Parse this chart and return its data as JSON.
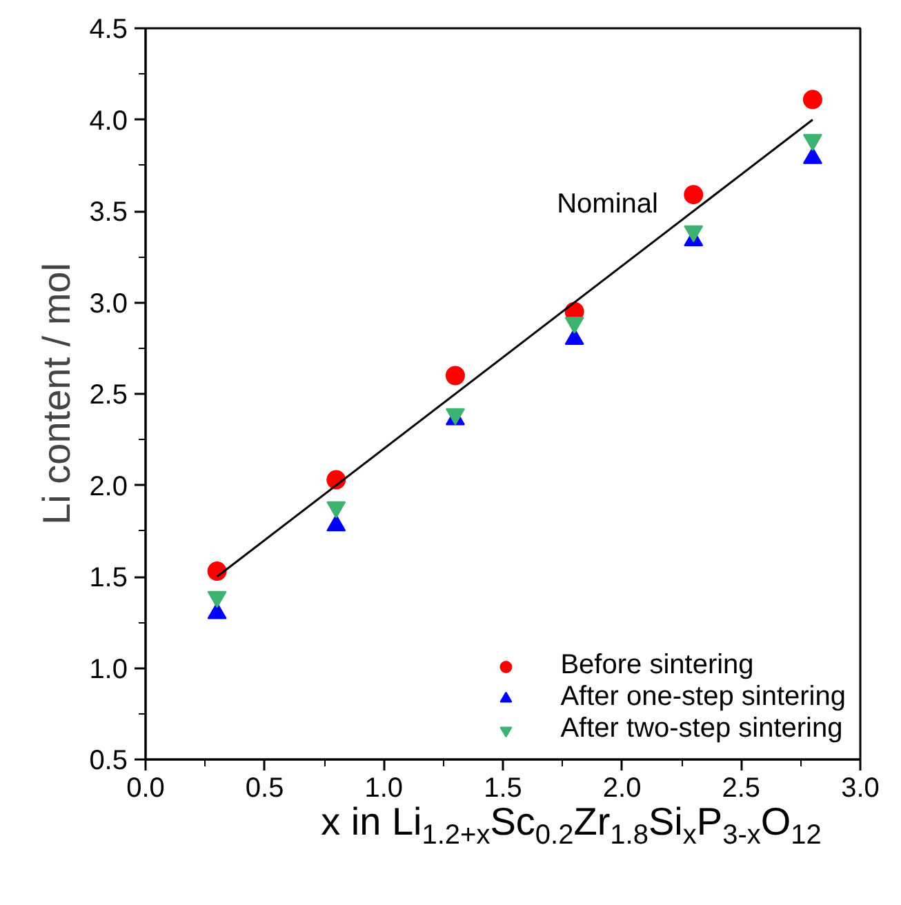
{
  "chart_data": {
    "type": "scatter",
    "xlabel": "x in Li$_{1.2+x}$Sc$_{0.2}$Zr$_{1.8}$Si$_{x}$P$_{3-x}$O$_{12}$",
    "ylabel": "Li content / mol",
    "x": [
      0.3,
      0.8,
      1.3,
      1.8,
      2.3,
      2.8
    ],
    "series": [
      {
        "name": "Before sintering",
        "color": "#ff0000",
        "marker": "circle",
        "values": [
          1.53,
          2.03,
          2.6,
          2.95,
          3.59,
          4.11
        ]
      },
      {
        "name": "After one-step sintering",
        "color": "#0000ff",
        "marker": "triangle",
        "values": [
          1.3,
          1.78,
          2.36,
          2.8,
          3.34,
          3.79
        ]
      },
      {
        "name": "After two-step sintering",
        "color": "#3cb371",
        "marker": "triangle",
        "values": [
          1.39,
          1.88,
          2.39,
          2.89,
          3.39,
          3.89
        ]
      },
      {
        "name": "Nominal",
        "type": "line",
        "color": "#000000",
        "x": [
          0.3,
          2.8
        ],
        "values": [
          1.5,
          4.0
        ]
      }
    ],
    "xlim": [
      0.0,
      3.0
    ],
    "xticks": [
      {
        "value": 0,
        "label": "0.0"
      },
      0.5,
      {
        "value": 1,
        "label": "1.0"
      },
      1.5,
      {
        "value": 2,
        "label": "2.0"
      },
      2.5,
      {
        "value": 3,
        "label": "3.0"
      }
    ],
    "ylim": [
      0.5,
      4.5
    ],
    "yticks": [
      0.5,
      {
        "value": 1,
        "label": "1.0"
      },
      1.5,
      {
        "value": 2,
        "label": "2.0"
      },
      2.5,
      {
        "value": 3,
        "label": "3.0"
      },
      3.5,
      {
        "value": 4,
        "label": "4.0"
      },
      4.5
    ],
    "legend": "bottom right",
    "grid": false
  }
}
